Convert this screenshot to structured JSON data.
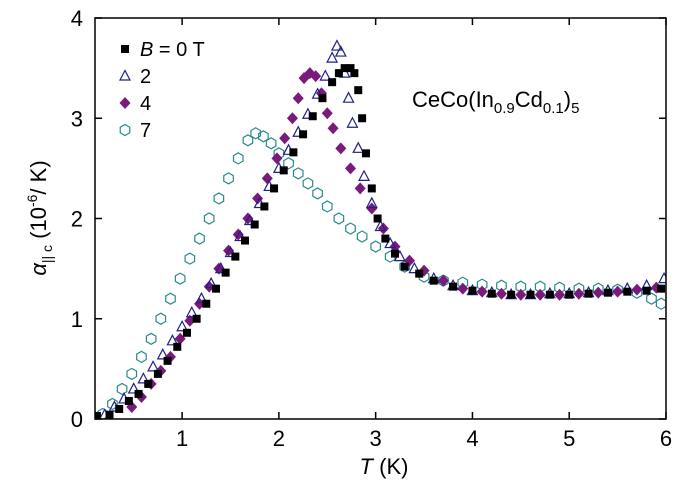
{
  "chart_data": {
    "type": "scatter",
    "title": "",
    "annotation": {
      "main": "CeCo(In",
      "sub1": "0.9",
      "mid": "Cd",
      "sub2": "0.1",
      "close": ")",
      "sub3": "5"
    },
    "xlabel": {
      "var": "T",
      "unit": " (K)"
    },
    "ylabel": {
      "var": "α",
      "sub": "|| c",
      "open": " (10",
      "sup": "-6",
      "unit": "/ K)"
    },
    "xlim": [
      0.1,
      6
    ],
    "ylim": [
      0,
      4
    ],
    "xticks": [
      1,
      2,
      3,
      4,
      5,
      6
    ],
    "yticks": [
      0,
      1,
      2,
      3,
      4
    ],
    "grid": false,
    "legend_position": "top-left",
    "legend_title_var": "B",
    "legend_title_rest": " = 0 T",
    "series": [
      {
        "name": "0",
        "legend_label": "B = 0 T",
        "marker": "square-filled",
        "color": "#000000",
        "points": [
          [
            0.12,
            0.03
          ],
          [
            0.25,
            0.04
          ],
          [
            0.35,
            0.1
          ],
          [
            0.45,
            0.18
          ],
          [
            0.55,
            0.25
          ],
          [
            0.65,
            0.35
          ],
          [
            0.75,
            0.45
          ],
          [
            0.85,
            0.58
          ],
          [
            0.95,
            0.72
          ],
          [
            1.05,
            0.86
          ],
          [
            1.15,
            1.0
          ],
          [
            1.25,
            1.15
          ],
          [
            1.35,
            1.3
          ],
          [
            1.45,
            1.46
          ],
          [
            1.55,
            1.62
          ],
          [
            1.65,
            1.78
          ],
          [
            1.75,
            1.94
          ],
          [
            1.85,
            2.12
          ],
          [
            1.95,
            2.3
          ],
          [
            2.05,
            2.48
          ],
          [
            2.15,
            2.66
          ],
          [
            2.25,
            2.84
          ],
          [
            2.35,
            3.02
          ],
          [
            2.45,
            3.2
          ],
          [
            2.55,
            3.36
          ],
          [
            2.62,
            3.45
          ],
          [
            2.68,
            3.5
          ],
          [
            2.74,
            3.5
          ],
          [
            2.78,
            3.45
          ],
          [
            2.82,
            3.28
          ],
          [
            2.86,
            3.0
          ],
          [
            2.9,
            2.65
          ],
          [
            2.96,
            2.3
          ],
          [
            3.02,
            2.0
          ],
          [
            3.1,
            1.8
          ],
          [
            3.2,
            1.65
          ],
          [
            3.3,
            1.52
          ],
          [
            3.45,
            1.45
          ],
          [
            3.6,
            1.38
          ],
          [
            3.8,
            1.32
          ],
          [
            4.0,
            1.28
          ],
          [
            4.2,
            1.25
          ],
          [
            4.4,
            1.24
          ],
          [
            4.6,
            1.24
          ],
          [
            4.8,
            1.24
          ],
          [
            5.0,
            1.24
          ],
          [
            5.2,
            1.25
          ],
          [
            5.4,
            1.26
          ],
          [
            5.6,
            1.27
          ],
          [
            5.8,
            1.28
          ],
          [
            5.95,
            1.3
          ]
        ]
      },
      {
        "name": "2",
        "legend_label": "2",
        "marker": "triangle-open",
        "color": "#1f1f8f",
        "points": [
          [
            0.1,
            0.02
          ],
          [
            0.2,
            0.04
          ],
          [
            0.3,
            0.12
          ],
          [
            0.4,
            0.2
          ],
          [
            0.5,
            0.3
          ],
          [
            0.6,
            0.4
          ],
          [
            0.7,
            0.52
          ],
          [
            0.8,
            0.64
          ],
          [
            0.9,
            0.78
          ],
          [
            1.0,
            0.92
          ],
          [
            1.1,
            1.06
          ],
          [
            1.2,
            1.2
          ],
          [
            1.3,
            1.35
          ],
          [
            1.4,
            1.5
          ],
          [
            1.5,
            1.66
          ],
          [
            1.6,
            1.82
          ],
          [
            1.7,
            1.98
          ],
          [
            1.8,
            2.15
          ],
          [
            1.9,
            2.32
          ],
          [
            2.0,
            2.5
          ],
          [
            2.1,
            2.68
          ],
          [
            2.2,
            2.86
          ],
          [
            2.3,
            3.04
          ],
          [
            2.4,
            3.24
          ],
          [
            2.48,
            3.42
          ],
          [
            2.55,
            3.6
          ],
          [
            2.6,
            3.72
          ],
          [
            2.64,
            3.66
          ],
          [
            2.68,
            3.45
          ],
          [
            2.72,
            3.2
          ],
          [
            2.76,
            2.95
          ],
          [
            2.82,
            2.7
          ],
          [
            2.88,
            2.42
          ],
          [
            2.96,
            2.15
          ],
          [
            3.05,
            1.92
          ],
          [
            3.15,
            1.75
          ],
          [
            3.25,
            1.62
          ],
          [
            3.4,
            1.5
          ],
          [
            3.6,
            1.4
          ],
          [
            3.8,
            1.33
          ],
          [
            4.0,
            1.28
          ],
          [
            4.2,
            1.26
          ],
          [
            4.4,
            1.24
          ],
          [
            4.6,
            1.24
          ],
          [
            4.8,
            1.25
          ],
          [
            5.0,
            1.25
          ],
          [
            5.2,
            1.26
          ],
          [
            5.4,
            1.28
          ],
          [
            5.6,
            1.3
          ],
          [
            5.8,
            1.33
          ],
          [
            5.98,
            1.4
          ]
        ]
      },
      {
        "name": "4",
        "legend_label": "4",
        "marker": "diamond-filled",
        "color": "#7a1a7a",
        "points": [
          [
            0.48,
            0.12
          ],
          [
            0.58,
            0.22
          ],
          [
            0.68,
            0.35
          ],
          [
            0.78,
            0.48
          ],
          [
            0.88,
            0.62
          ],
          [
            0.98,
            0.8
          ],
          [
            1.08,
            0.98
          ],
          [
            1.18,
            1.15
          ],
          [
            1.28,
            1.32
          ],
          [
            1.38,
            1.5
          ],
          [
            1.48,
            1.68
          ],
          [
            1.58,
            1.84
          ],
          [
            1.68,
            2.0
          ],
          [
            1.78,
            2.2
          ],
          [
            1.88,
            2.4
          ],
          [
            1.98,
            2.6
          ],
          [
            2.06,
            2.8
          ],
          [
            2.14,
            3.0
          ],
          [
            2.2,
            3.2
          ],
          [
            2.26,
            3.4
          ],
          [
            2.32,
            3.45
          ],
          [
            2.38,
            3.42
          ],
          [
            2.44,
            3.25
          ],
          [
            2.5,
            3.05
          ],
          [
            2.56,
            2.9
          ],
          [
            2.64,
            2.7
          ],
          [
            2.74,
            2.5
          ],
          [
            2.84,
            2.3
          ],
          [
            2.96,
            2.1
          ],
          [
            3.08,
            1.9
          ],
          [
            3.2,
            1.72
          ],
          [
            3.35,
            1.58
          ],
          [
            3.5,
            1.48
          ],
          [
            3.7,
            1.38
          ],
          [
            3.9,
            1.3
          ],
          [
            4.1,
            1.27
          ],
          [
            4.3,
            1.25
          ],
          [
            4.5,
            1.24
          ],
          [
            4.7,
            1.24
          ],
          [
            4.9,
            1.24
          ],
          [
            5.1,
            1.25
          ],
          [
            5.3,
            1.26
          ],
          [
            5.5,
            1.27
          ],
          [
            5.7,
            1.29
          ],
          [
            5.9,
            1.31
          ]
        ]
      },
      {
        "name": "7",
        "legend_label": "7",
        "marker": "hexagon-open",
        "color": "#2a8a8a",
        "points": [
          [
            0.18,
            0.05
          ],
          [
            0.28,
            0.15
          ],
          [
            0.38,
            0.3
          ],
          [
            0.48,
            0.45
          ],
          [
            0.58,
            0.62
          ],
          [
            0.68,
            0.8
          ],
          [
            0.78,
            1.0
          ],
          [
            0.88,
            1.2
          ],
          [
            0.98,
            1.4
          ],
          [
            1.08,
            1.6
          ],
          [
            1.18,
            1.8
          ],
          [
            1.28,
            2.0
          ],
          [
            1.38,
            2.2
          ],
          [
            1.48,
            2.4
          ],
          [
            1.58,
            2.6
          ],
          [
            1.68,
            2.78
          ],
          [
            1.76,
            2.85
          ],
          [
            1.84,
            2.82
          ],
          [
            1.92,
            2.75
          ],
          [
            2.0,
            2.65
          ],
          [
            2.1,
            2.55
          ],
          [
            2.2,
            2.45
          ],
          [
            2.3,
            2.35
          ],
          [
            2.4,
            2.25
          ],
          [
            2.5,
            2.12
          ],
          [
            2.62,
            2.0
          ],
          [
            2.74,
            1.9
          ],
          [
            2.86,
            1.82
          ],
          [
            3.0,
            1.72
          ],
          [
            3.15,
            1.62
          ],
          [
            3.3,
            1.52
          ],
          [
            3.5,
            1.42
          ],
          [
            3.7,
            1.38
          ],
          [
            3.9,
            1.36
          ],
          [
            4.1,
            1.34
          ],
          [
            4.3,
            1.33
          ],
          [
            4.5,
            1.32
          ],
          [
            4.7,
            1.32
          ],
          [
            4.9,
            1.31
          ],
          [
            5.1,
            1.3
          ],
          [
            5.3,
            1.3
          ],
          [
            5.5,
            1.29
          ],
          [
            5.7,
            1.26
          ],
          [
            5.85,
            1.2
          ],
          [
            5.95,
            1.15
          ]
        ]
      }
    ]
  }
}
